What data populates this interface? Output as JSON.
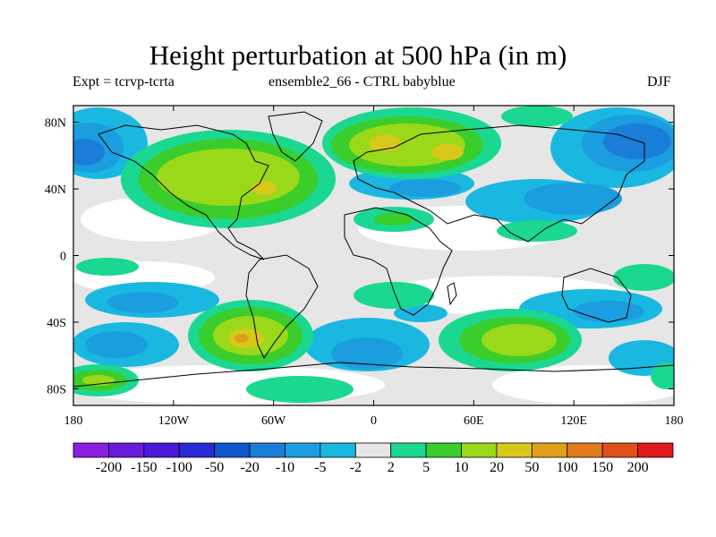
{
  "title": "Height perturbation at 500 hPa (in m)",
  "subtitle_left": "Expt = tcrvp-tcrta",
  "subtitle_center": "ensemble2_66 - CTRL babyblue",
  "subtitle_right": "DJF",
  "lat_ticks": [
    "80N",
    "40N",
    "0",
    "40S",
    "80S"
  ],
  "lon_ticks": [
    "180",
    "120W",
    "60W",
    "0",
    "60E",
    "120E",
    "180"
  ],
  "colorbar": {
    "labels": [
      "-200",
      "-150",
      "-100",
      "-50",
      "-20",
      "-10",
      "-5",
      "-2",
      "2",
      "5",
      "10",
      "20",
      "50",
      "100",
      "150",
      "200"
    ],
    "colors": [
      "#8a1fe0",
      "#6a1adb",
      "#4a1ad8",
      "#2a2ad4",
      "#1055d0",
      "#1a7ed8",
      "#1a9ee0",
      "#1ab8e0",
      "#e6e6e6",
      "#1ad890",
      "#3acd2c",
      "#9ad81a",
      "#d8c81a",
      "#e0a01a",
      "#e07a1a",
      "#e0501a",
      "#e01a1a"
    ]
  },
  "map_colors": {
    "background": "#e6e6e6",
    "neg2": "#1ab8e0",
    "neg5": "#1a9ee0",
    "neg10": "#1a7ed8",
    "neg20": "#1055d0",
    "pos2": "#1ad890",
    "pos5": "#3acd2c",
    "pos10": "#9ad81a",
    "pos20": "#d8c81a",
    "pos50": "#e0a01a",
    "white": "#ffffff"
  }
}
